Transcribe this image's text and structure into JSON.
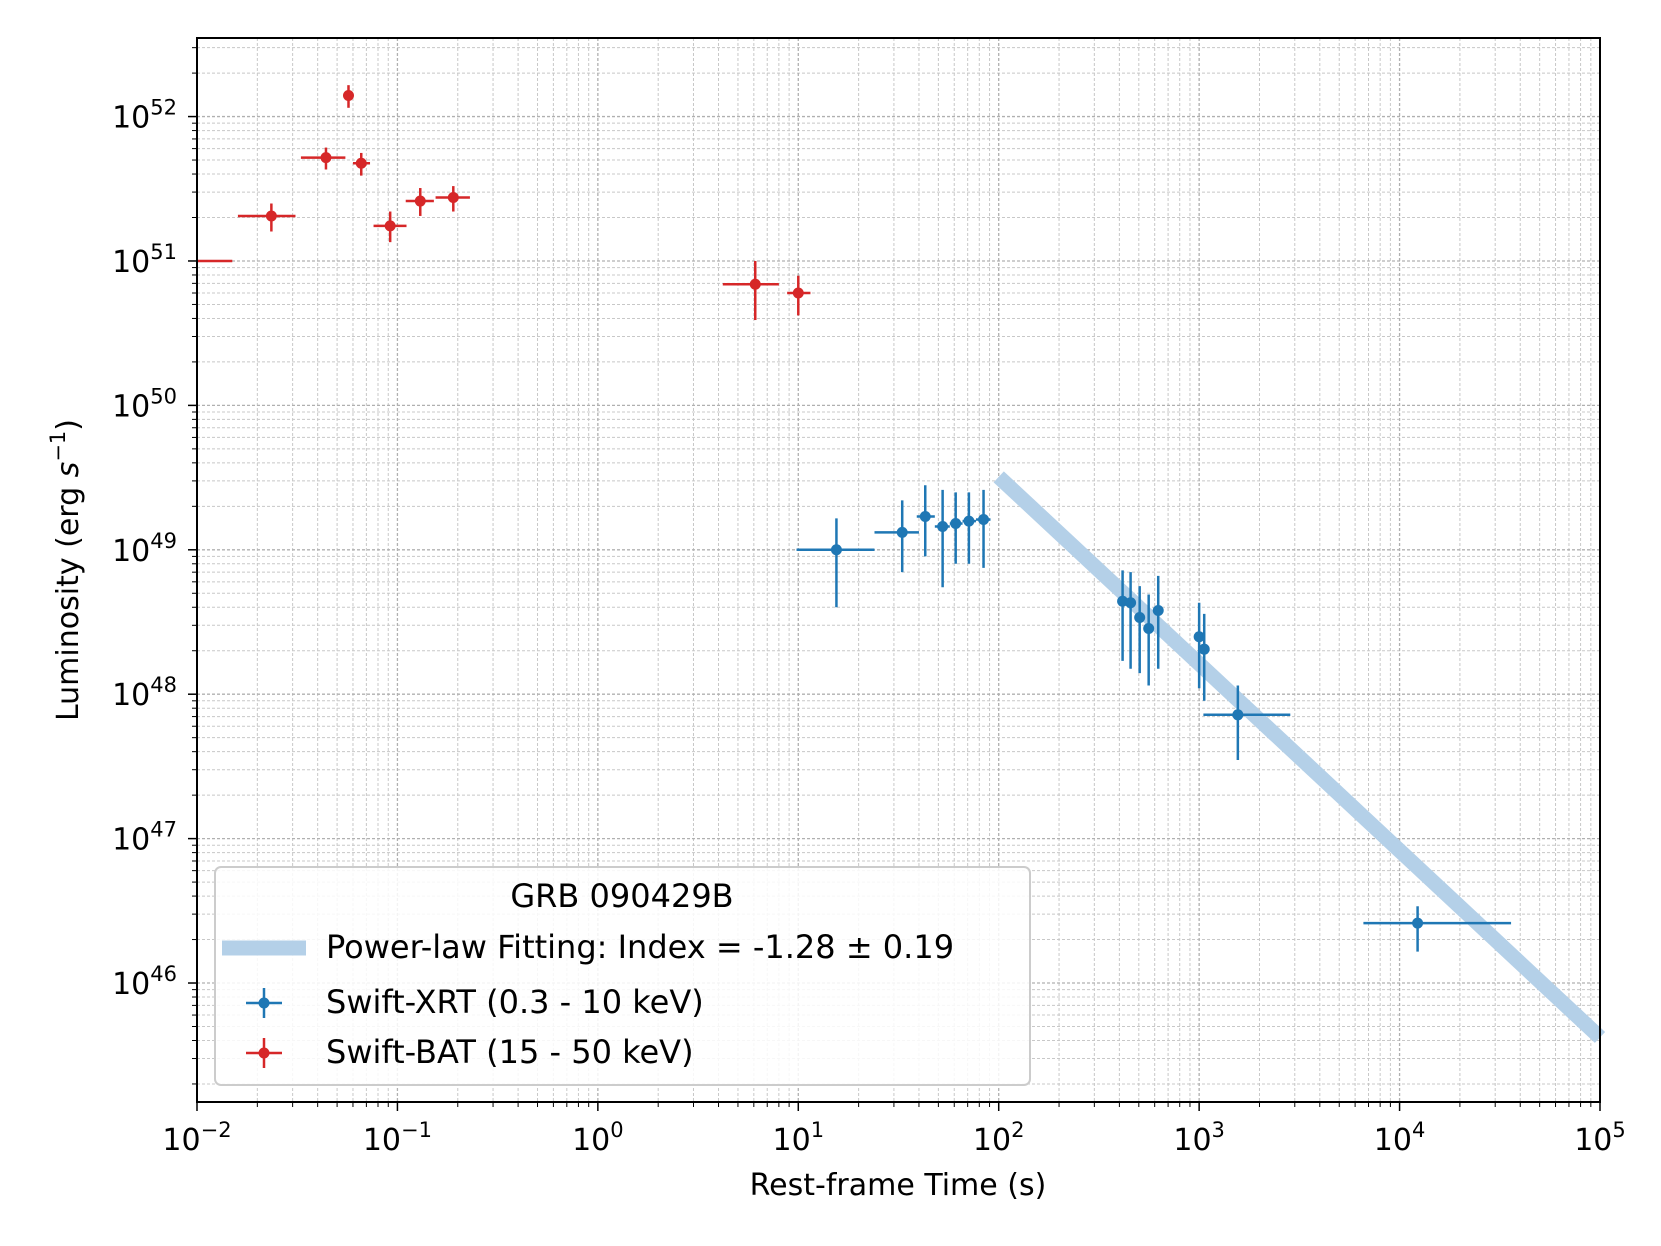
{
  "chart_data": {
    "type": "scatter",
    "xscale": "log",
    "yscale": "log",
    "xlim": [
      0.01,
      100000
    ],
    "ylim": [
      1.5e+45,
      3.5e+52
    ],
    "xlabel": "Rest-frame Time (s)",
    "ylabel_main": "Luminosity (erg ",
    "ylabel_s": "s",
    "ylabel_exp": "−1",
    "ylabel_close": ")",
    "xticks": [
      {
        "value": 0.01,
        "base": "10",
        "exp": "−2"
      },
      {
        "value": 0.1,
        "base": "10",
        "exp": "−1"
      },
      {
        "value": 1,
        "base": "10",
        "exp": "0"
      },
      {
        "value": 10,
        "base": "10",
        "exp": "1"
      },
      {
        "value": 100,
        "base": "10",
        "exp": "2"
      },
      {
        "value": 1000,
        "base": "10",
        "exp": "3"
      },
      {
        "value": 10000,
        "base": "10",
        "exp": "4"
      },
      {
        "value": 100000,
        "base": "10",
        "exp": "5"
      }
    ],
    "yticks": [
      {
        "value": 1e+46,
        "base": "10",
        "exp": "46"
      },
      {
        "value": 1e+47,
        "base": "10",
        "exp": "47"
      },
      {
        "value": 1e+48,
        "base": "10",
        "exp": "48"
      },
      {
        "value": 1e+49,
        "base": "10",
        "exp": "49"
      },
      {
        "value": 1e+50,
        "base": "10",
        "exp": "50"
      },
      {
        "value": 1e+51,
        "base": "10",
        "exp": "51"
      },
      {
        "value": 1e+52,
        "base": "10",
        "exp": "52"
      }
    ],
    "grid": true,
    "legend": {
      "position": "lower-left",
      "title": "GRB 090429B",
      "entries": [
        "Power-law Fitting: Index = -1.28 ± 0.19",
        "Swift-XRT (0.3 - 10 keV)",
        "Swift-BAT (15 - 50 keV)"
      ]
    },
    "colors": {
      "xrt": "#1f77b4",
      "bat": "#d62728",
      "fit": "#b4d0e8"
    },
    "fit": {
      "name": "Power-law Fitting",
      "index": -1.28,
      "index_err": 0.19,
      "x": [
        100,
        100000
      ],
      "y": [
        3.2e+49,
        4.2e+45
      ]
    },
    "series": [
      {
        "name": "Swift-XRT (0.3 - 10 keV)",
        "points": [
          {
            "x": 15.5,
            "xlo": 9.8,
            "xhi": 24,
            "y": 1e+49,
            "ylo": 4e+48,
            "yhi": 1.65e+49
          },
          {
            "x": 33,
            "xlo": 24,
            "xhi": 40,
            "y": 1.32e+49,
            "ylo": 7e+48,
            "yhi": 2.2e+49
          },
          {
            "x": 43,
            "xlo": 39,
            "xhi": 48,
            "y": 1.7e+49,
            "ylo": 9e+48,
            "yhi": 2.8e+49
          },
          {
            "x": 52.5,
            "xlo": 48,
            "xhi": 57,
            "y": 1.45e+49,
            "ylo": 5.5e+48,
            "yhi": 2.6e+49
          },
          {
            "x": 61,
            "xlo": 57,
            "xhi": 66,
            "y": 1.52e+49,
            "ylo": 8e+48,
            "yhi": 2.5e+49
          },
          {
            "x": 71,
            "xlo": 66,
            "xhi": 77,
            "y": 1.58e+49,
            "ylo": 8e+48,
            "yhi": 2.5e+49
          },
          {
            "x": 84,
            "xlo": 77,
            "xhi": 91,
            "y": 1.62e+49,
            "ylo": 7.5e+48,
            "yhi": 2.6e+49
          },
          {
            "x": 415,
            "xlo": 395,
            "xhi": 435,
            "y": 4.4e+48,
            "ylo": 1.7e+48,
            "yhi": 7.2e+48
          },
          {
            "x": 455,
            "xlo": 435,
            "xhi": 480,
            "y": 4.3e+48,
            "ylo": 1.5e+48,
            "yhi": 7e+48
          },
          {
            "x": 505,
            "xlo": 480,
            "xhi": 530,
            "y": 3.4e+48,
            "ylo": 1.4e+48,
            "yhi": 5.6e+48
          },
          {
            "x": 560,
            "xlo": 530,
            "xhi": 590,
            "y": 2.85e+48,
            "ylo": 1.15e+48,
            "yhi": 4.9e+48
          },
          {
            "x": 625,
            "xlo": 595,
            "xhi": 655,
            "y": 3.8e+48,
            "ylo": 1.5e+48,
            "yhi": 6.6e+48
          },
          {
            "x": 1000,
            "xlo": 975,
            "xhi": 1030,
            "y": 2.5e+48,
            "ylo": 1.1e+48,
            "yhi": 4.3e+48
          },
          {
            "x": 1060,
            "xlo": 1030,
            "xhi": 1090,
            "y": 2.05e+48,
            "ylo": 9e+47,
            "yhi": 3.6e+48
          },
          {
            "x": 1560,
            "xlo": 1050,
            "xhi": 2850,
            "y": 7.2e+47,
            "ylo": 3.5e+47,
            "yhi": 1.15e+48
          },
          {
            "x": 12300,
            "xlo": 6600,
            "xhi": 36000,
            "y": 2.6e+46,
            "ylo": 1.65e+46,
            "yhi": 3.4e+46
          }
        ]
      },
      {
        "name": "Swift-BAT (15 - 50 keV)",
        "points": [
          {
            "x": 0.0105,
            "xlo": 0.01,
            "xhi": 0.015,
            "y": 1e+51,
            "ylo": 1e+51,
            "yhi": 1e+51,
            "nomarker": true
          },
          {
            "x": 0.0235,
            "xlo": 0.016,
            "xhi": 0.031,
            "y": 2.05e+51,
            "ylo": 1.6e+51,
            "yhi": 2.5e+51
          },
          {
            "x": 0.044,
            "xlo": 0.033,
            "xhi": 0.055,
            "y": 5.2e+51,
            "ylo": 4.3e+51,
            "yhi": 6.1e+51
          },
          {
            "x": 0.057,
            "xlo": 0.055,
            "xhi": 0.059,
            "y": 1.4e+52,
            "ylo": 1.15e+52,
            "yhi": 1.65e+52
          },
          {
            "x": 0.066,
            "xlo": 0.06,
            "xhi": 0.073,
            "y": 4.75e+51,
            "ylo": 3.9e+51,
            "yhi": 5.6e+51
          },
          {
            "x": 0.092,
            "xlo": 0.076,
            "xhi": 0.111,
            "y": 1.75e+51,
            "ylo": 1.35e+51,
            "yhi": 2.2e+51
          },
          {
            "x": 0.13,
            "xlo": 0.11,
            "xhi": 0.152,
            "y": 2.6e+51,
            "ylo": 2.05e+51,
            "yhi": 3.2e+51
          },
          {
            "x": 0.19,
            "xlo": 0.155,
            "xhi": 0.23,
            "y": 2.75e+51,
            "ylo": 2.2e+51,
            "yhi": 3.3e+51
          },
          {
            "x": 6.1,
            "xlo": 4.2,
            "xhi": 8.0,
            "y": 6.9e+50,
            "ylo": 3.9e+50,
            "yhi": 1e+51
          },
          {
            "x": 10,
            "xlo": 8.8,
            "xhi": 11.5,
            "y": 6e+50,
            "ylo": 4.2e+50,
            "yhi": 7.9e+50
          }
        ]
      }
    ]
  }
}
